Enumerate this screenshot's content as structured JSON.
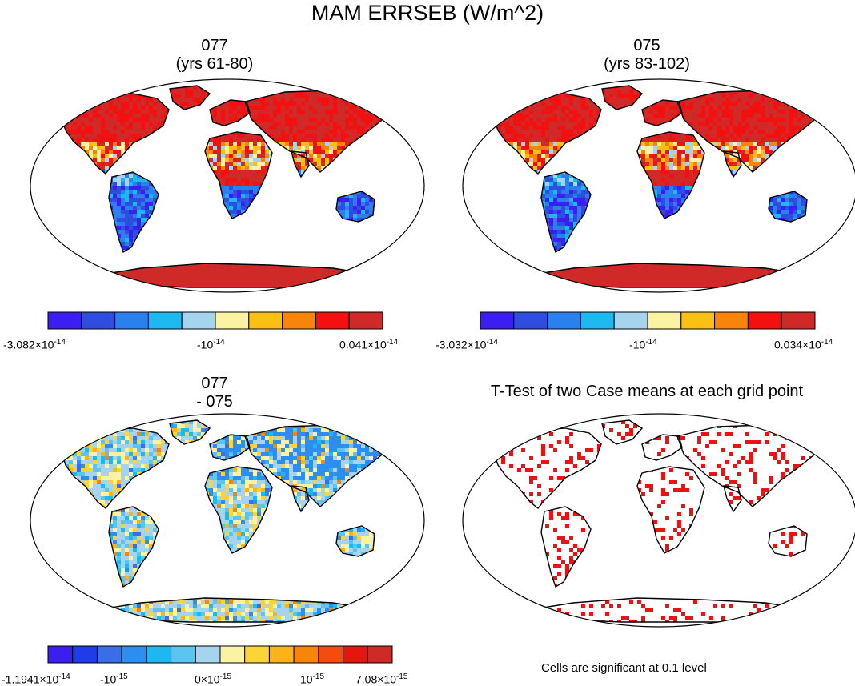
{
  "main_title": "MAM ERRSEB (W/m^2)",
  "panels": [
    {
      "title_line1": "077",
      "title_line2": "(yrs 61-80)",
      "colorbar": {
        "colors": [
          "#3a1ff0",
          "#2f4ee0",
          "#2b80f0",
          "#1eb8f0",
          "#a6d4ee",
          "#fbf3a3",
          "#fbc013",
          "#f8840a",
          "#f21010",
          "#d02a28"
        ],
        "label_min": "-3.082×10",
        "label_min_exp": "-14",
        "label_mid": "-10",
        "label_mid_exp": "-14",
        "label_max": "0.041×10",
        "label_max_exp": "-14"
      }
    },
    {
      "title_line1": "075",
      "title_line2": "(yrs 83-102)",
      "colorbar": {
        "colors": [
          "#3a1ff0",
          "#2f4ee0",
          "#2b80f0",
          "#1eb8f0",
          "#a6d4ee",
          "#fbf3a3",
          "#fbc013",
          "#f8840a",
          "#f21010",
          "#d02a28"
        ],
        "label_min": "-3.032×10",
        "label_min_exp": "-14",
        "label_mid": "-10",
        "label_mid_exp": "-14",
        "label_max": "0.034×10",
        "label_max_exp": "-14"
      }
    },
    {
      "title_line1": "077",
      "title_line2": "- 075",
      "colorbar": {
        "colors": [
          "#3a1ff0",
          "#1e3de8",
          "#3a6ee6",
          "#2b8ef0",
          "#1eb8f0",
          "#5cc4f0",
          "#a6d4ee",
          "#fbf3a3",
          "#fbd43a",
          "#fbb31a",
          "#f8840a",
          "#f54a10",
          "#e4170f",
          "#d02a28"
        ],
        "label_min": "-1.1941×10",
        "label_min_exp": "-14",
        "label_a": "-10",
        "label_a_exp": "-15",
        "label_mid": "0×10",
        "label_mid_exp": "-15",
        "label_b": "10",
        "label_b_exp": "-15",
        "label_max": "7.08×10",
        "label_max_exp": "-15"
      }
    },
    {
      "title_line1": "T-Test of two Case means at each grid point",
      "note": "Cells are significant at 0.1 level",
      "significance_color": "#ee1111"
    }
  ]
}
